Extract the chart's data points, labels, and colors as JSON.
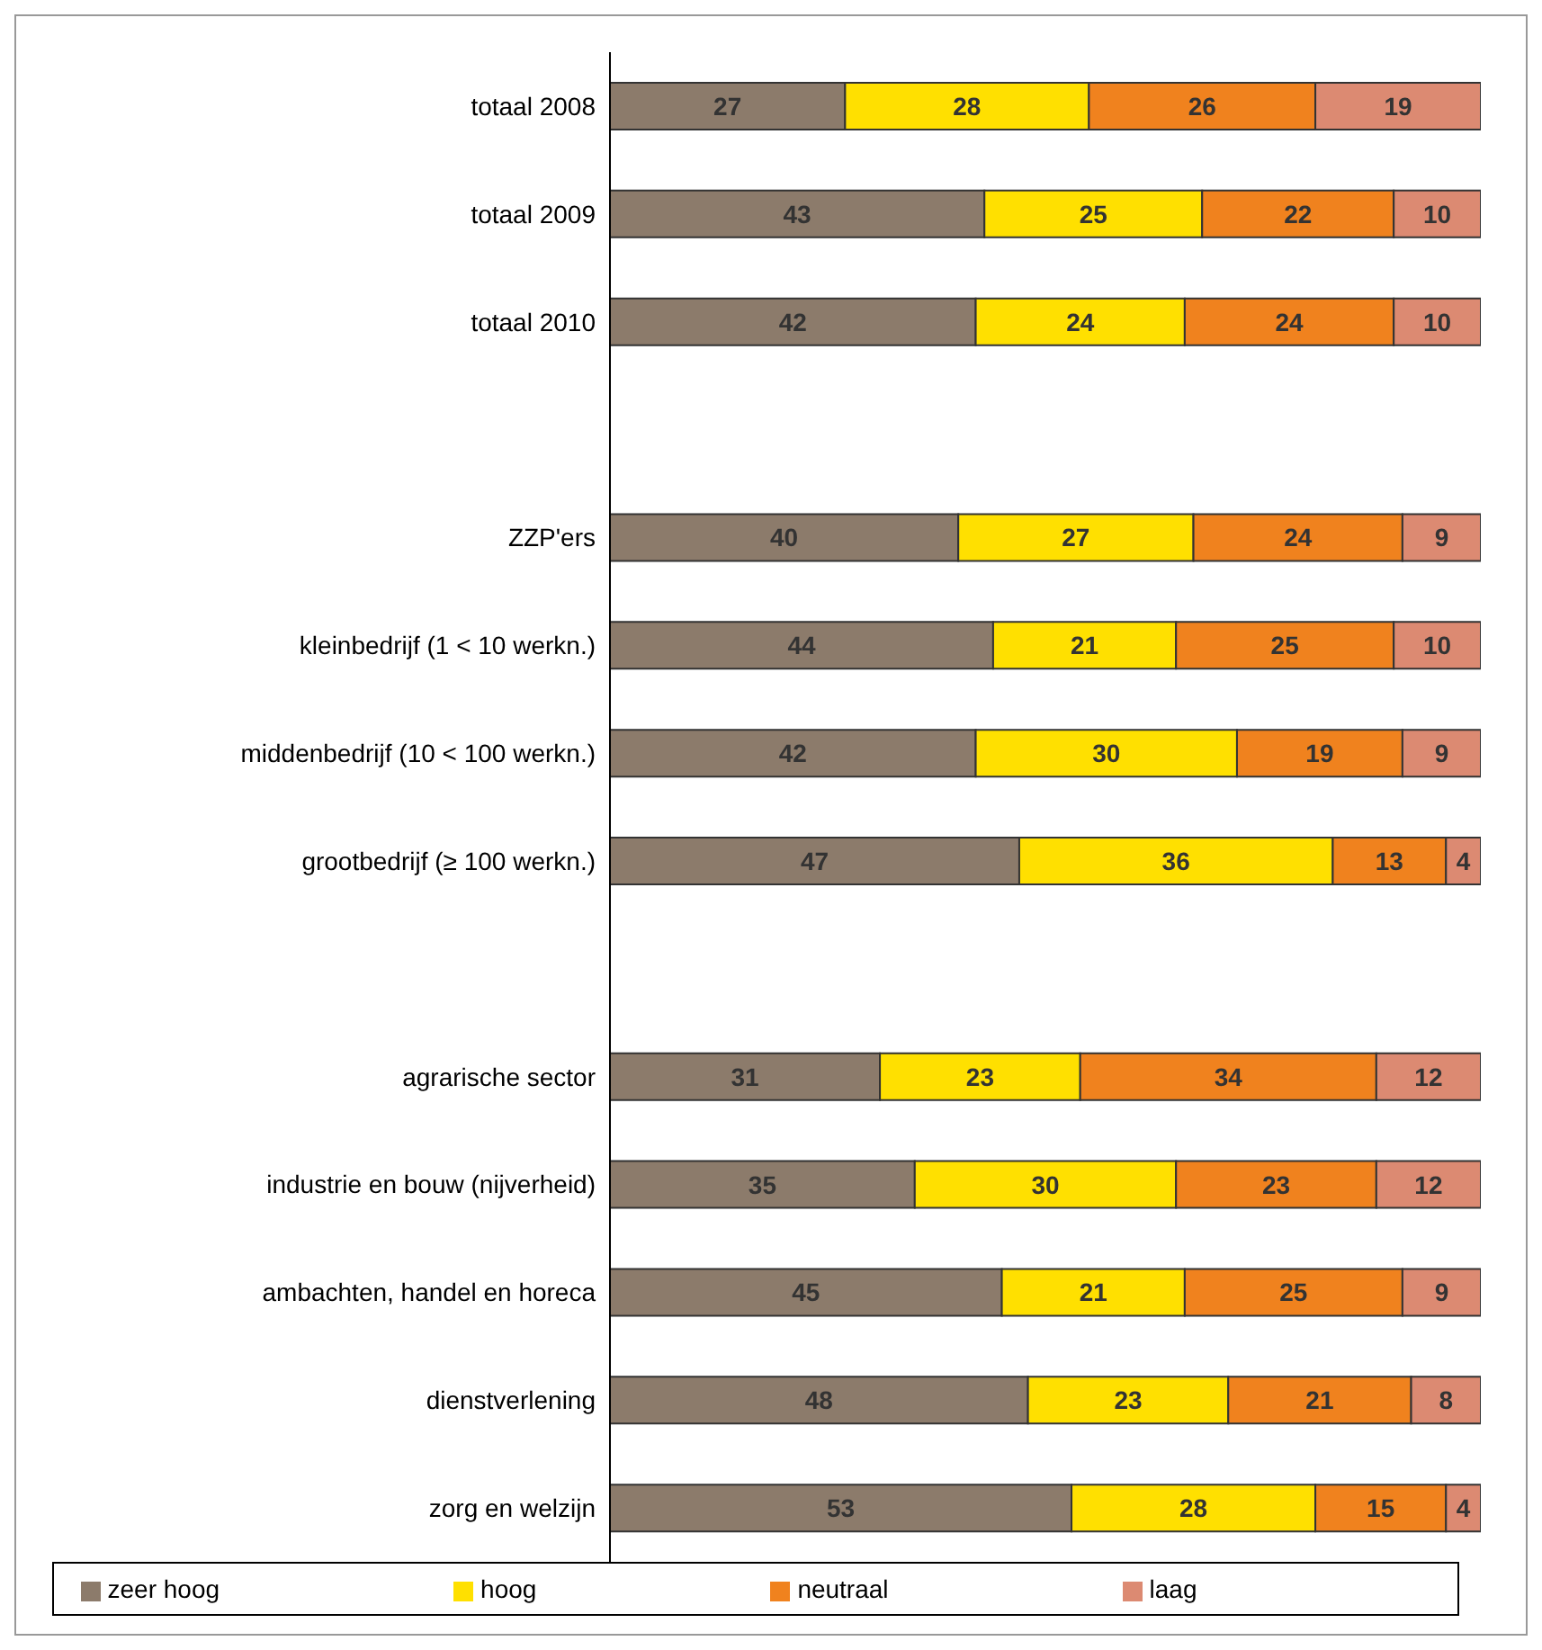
{
  "chart_data": {
    "type": "bar",
    "orientation": "horizontal",
    "stacked": true,
    "data_labels": true,
    "legend": "bottom",
    "categories": [
      "totaal 2008",
      "totaal 2009",
      "totaal 2010",
      null,
      "ZZP'ers",
      "kleinbedrijf (1 < 10 werkn.)",
      "middenbedrijf (10 < 100 werkn.)",
      "grootbedrijf (≥ 100 werkn.)",
      null,
      "agrarische sector",
      "industrie en bouw  (nijverheid)",
      "ambachten, handel en horeca",
      "dienstverlening",
      "zorg en welzijn"
    ],
    "series": [
      {
        "name": "zeer hoog",
        "color": "#8c7b6b",
        "values": [
          27,
          43,
          42,
          null,
          40,
          44,
          42,
          47,
          null,
          31,
          35,
          45,
          48,
          53
        ]
      },
      {
        "name": "hoog",
        "color": "#ffe000",
        "values": [
          28,
          25,
          24,
          null,
          27,
          21,
          30,
          36,
          null,
          23,
          30,
          21,
          23,
          28
        ]
      },
      {
        "name": "neutraal",
        "color": "#f0821e",
        "values": [
          26,
          22,
          24,
          null,
          24,
          25,
          19,
          13,
          null,
          34,
          23,
          25,
          21,
          15
        ]
      },
      {
        "name": "laag",
        "color": "#dc8a72",
        "values": [
          19,
          10,
          10,
          null,
          9,
          10,
          9,
          4,
          null,
          12,
          12,
          9,
          8,
          4
        ]
      }
    ]
  }
}
